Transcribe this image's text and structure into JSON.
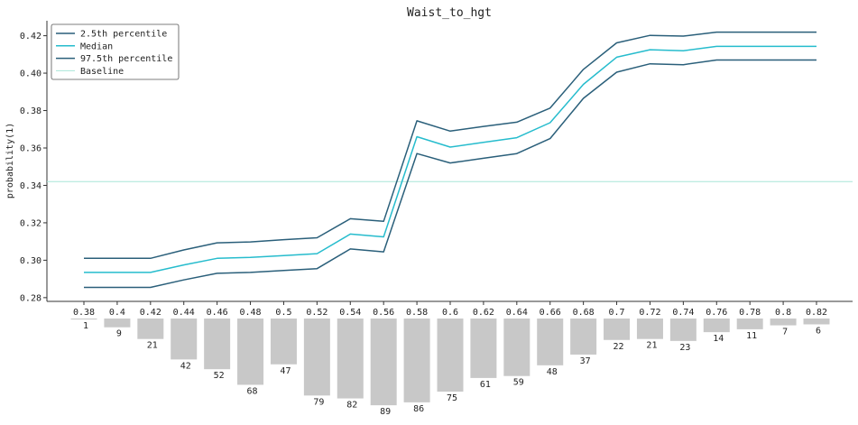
{
  "chart_data": {
    "type": "line",
    "title": "Waist_to_hgt",
    "xlabel": "",
    "ylabel": "probability(1)",
    "categories": [
      "0.38",
      "0.4",
      "0.42",
      "0.44",
      "0.46",
      "0.48",
      "0.5",
      "0.52",
      "0.54",
      "0.56",
      "0.58",
      "0.6",
      "0.62",
      "0.64",
      "0.66",
      "0.68",
      "0.7",
      "0.72",
      "0.74",
      "0.76",
      "0.78",
      "0.8",
      "0.82"
    ],
    "ylim": [
      0.278,
      0.428
    ],
    "yticks": [
      "0.28",
      "0.30",
      "0.32",
      "0.34",
      "0.36",
      "0.38",
      "0.40",
      "0.42"
    ],
    "grid": false,
    "legend_position": "top-left",
    "series": [
      {
        "name": "2.5th percentile",
        "color": "#2a5f7a",
        "values": [
          0.2855,
          0.2855,
          0.2855,
          0.2895,
          0.293,
          0.2935,
          0.2945,
          0.2955,
          0.306,
          0.3045,
          0.357,
          0.352,
          0.3545,
          0.357,
          0.365,
          0.3865,
          0.4005,
          0.405,
          0.4045,
          0.407,
          0.407,
          0.407,
          0.407
        ]
      },
      {
        "name": "Median",
        "color": "#26bccd",
        "values": [
          0.2935,
          0.2935,
          0.2935,
          0.2975,
          0.301,
          0.3015,
          0.3025,
          0.3035,
          0.314,
          0.3125,
          0.366,
          0.3605,
          0.363,
          0.3655,
          0.3735,
          0.394,
          0.4085,
          0.4125,
          0.412,
          0.4143,
          0.4143,
          0.4143,
          0.4143
        ]
      },
      {
        "name": "97.5th percentile",
        "color": "#2a5f7a",
        "values": [
          0.301,
          0.301,
          0.301,
          0.3055,
          0.3093,
          0.3098,
          0.311,
          0.312,
          0.3222,
          0.3208,
          0.3745,
          0.369,
          0.3715,
          0.3738,
          0.3813,
          0.402,
          0.4162,
          0.4202,
          0.4198,
          0.4219,
          0.4219,
          0.4219,
          0.4219
        ]
      }
    ],
    "baseline": {
      "name": "Baseline",
      "color": "#a8e6d8",
      "value": 0.342
    },
    "counts": [
      1,
      9,
      21,
      42,
      52,
      68,
      47,
      79,
      82,
      89,
      86,
      75,
      61,
      59,
      48,
      37,
      22,
      21,
      23,
      14,
      11,
      7,
      6
    ],
    "count_bar_color": "#c8c8c8"
  }
}
